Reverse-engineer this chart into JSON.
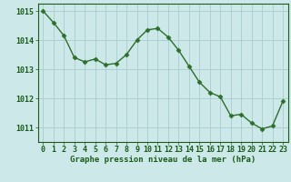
{
  "x": [
    0,
    1,
    2,
    3,
    4,
    5,
    6,
    7,
    8,
    9,
    10,
    11,
    12,
    13,
    14,
    15,
    16,
    17,
    18,
    19,
    20,
    21,
    22,
    23
  ],
  "y": [
    1015.0,
    1014.6,
    1014.15,
    1013.4,
    1013.25,
    1013.35,
    1013.15,
    1013.2,
    1013.5,
    1014.0,
    1014.35,
    1014.4,
    1014.1,
    1013.65,
    1013.1,
    1012.55,
    1012.2,
    1012.05,
    1011.4,
    1011.45,
    1011.15,
    1010.95,
    1011.05,
    1011.9
  ],
  "line_color": "#2d6e2d",
  "marker": "D",
  "marker_size": 2.5,
  "bg_color": "#cde8e8",
  "grid_color": "#aacccc",
  "xlabel": "Graphe pression niveau de la mer (hPa)",
  "xlabel_color": "#1a5c1a",
  "tick_color": "#1a5c1a",
  "ylim": [
    1010.5,
    1015.25
  ],
  "yticks": [
    1011,
    1012,
    1013,
    1014,
    1015
  ],
  "xlim": [
    -0.5,
    23.5
  ],
  "xticks": [
    0,
    1,
    2,
    3,
    4,
    5,
    6,
    7,
    8,
    9,
    10,
    11,
    12,
    13,
    14,
    15,
    16,
    17,
    18,
    19,
    20,
    21,
    22,
    23
  ],
  "tick_fontsize": 6.0,
  "xlabel_fontsize": 6.5
}
